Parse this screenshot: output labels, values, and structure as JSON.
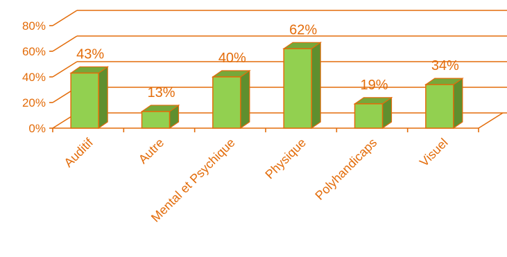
{
  "chart_data": {
    "type": "bar",
    "categories": [
      "Auditif",
      "Autre",
      "Mental et Psychique",
      "Physique",
      "Polyhandicaps",
      "Visuel"
    ],
    "values": [
      43,
      13,
      40,
      62,
      19,
      34
    ],
    "value_labels": [
      "43%",
      "13%",
      "40%",
      "62%",
      "19%",
      "34%"
    ],
    "yticks": [
      "0%",
      "20%",
      "40%",
      "60%",
      "80%"
    ],
    "ylim": [
      0,
      80
    ],
    "grid": true,
    "style": "3d",
    "colors": {
      "bar_front": "#92d050",
      "bar_side": "#5f8f2e",
      "bar_top": "#76a83a",
      "bar_edge": "#e36c0a",
      "grid": "#e36c0a",
      "text": "#e36c0a"
    }
  }
}
